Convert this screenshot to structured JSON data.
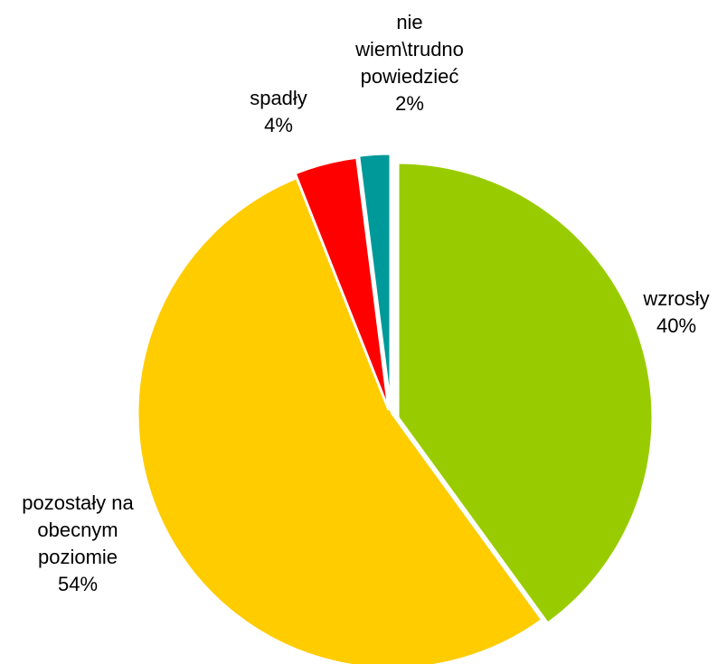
{
  "chart_data": {
    "type": "pie",
    "title": "",
    "slices": [
      {
        "label_lines": [
          "wzrosły"
        ],
        "value_label": "40%",
        "value": 40,
        "color": "#99cc00"
      },
      {
        "label_lines": [
          "pozostały na",
          "obecnym",
          "poziomie"
        ],
        "value_label": "54%",
        "value": 54,
        "color": "#ffcc00"
      },
      {
        "label_lines": [
          "spadły"
        ],
        "value_label": "4%",
        "value": 4,
        "color": "#ff0000"
      },
      {
        "label_lines": [
          "nie",
          "wiem\\trudno",
          "powiedzieć"
        ],
        "value_label": "2%",
        "value": 2,
        "color": "#009999"
      }
    ],
    "start_angle_deg": 0,
    "direction": "clockwise",
    "exploded": true,
    "legend": "none"
  }
}
